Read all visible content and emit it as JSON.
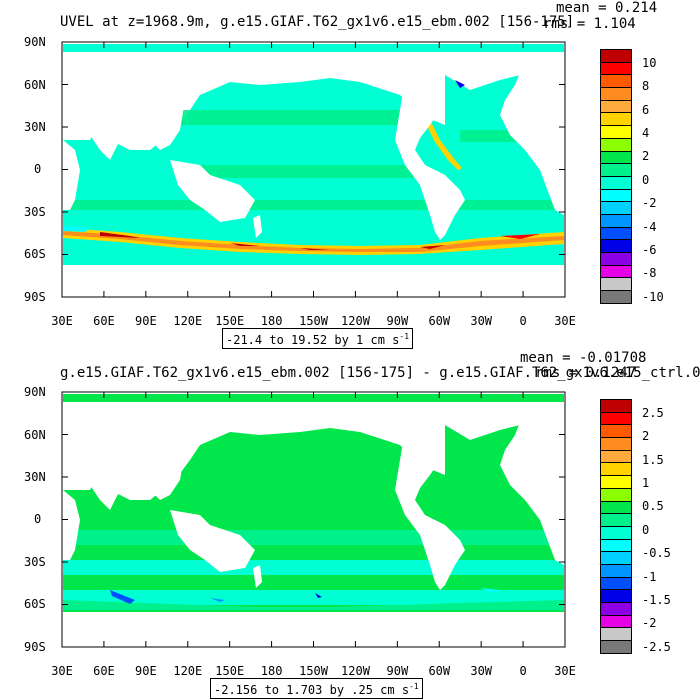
{
  "colors": {
    "red_dark": "#c00000",
    "red": "#ff0000",
    "orange_red": "#ff5a00",
    "orange": "#ff8c1e",
    "orange_light": "#ffaa3c",
    "yellow_orange": "#ffd200",
    "yellow": "#ffff00",
    "lime": "#8cff00",
    "green": "#00e64b",
    "green_light": "#00f08c",
    "aqua": "#00ffd2",
    "cyan": "#00ffff",
    "sky": "#00d2ff",
    "blue_light": "#0096ff",
    "blue": "#0050ff",
    "blue_dark": "#0000e6",
    "purple": "#8c00e6",
    "magenta": "#e600e6",
    "gray_light": "#c8c8c8",
    "gray_dark": "#787878",
    "land": "#ffffff",
    "frame": "#000000"
  },
  "panels": [
    {
      "title": "UVEL at z=1968.9m, g.e15.GIAF.T62_gx1v6.e15_ebm.002 [156-175]",
      "mean": "mean = 0.214",
      "rms": "rms = 1.104",
      "range": "-21.4 to 19.52 by 1 cm s",
      "range_sup": "-1",
      "lat_labels": [
        "90N",
        "60N",
        "30N",
        "0",
        "30S",
        "60S",
        "90S"
      ],
      "lon_labels": [
        "30E",
        "60E",
        "90E",
        "120E",
        "150E",
        "180",
        "150W",
        "120W",
        "90W",
        "60W",
        "30W",
        "0",
        "30E"
      ],
      "colorbar_labels": [
        "10",
        "8",
        "6",
        "4",
        "2",
        "0",
        "-2",
        "-4",
        "-6",
        "-8",
        "-10"
      ],
      "ocean_fill": "#00ffd2",
      "band_fill": "#00f08c"
    },
    {
      "title": "g.e15.GIAF.T62_gx1v6.e15_ebm.002 [156-175] - g.e15.GIAF.T62_gx1v6.e15_ctrl.0",
      "mean": "mean = -0.01708",
      "rms": "rms = 0.1247",
      "range": "-2.156 to 1.703 by .25 cm s",
      "range_sup": "-1",
      "lat_labels": [
        "90N",
        "60N",
        "30N",
        "0",
        "30S",
        "60S",
        "90S"
      ],
      "lon_labels": [
        "30E",
        "60E",
        "90E",
        "120E",
        "150E",
        "180",
        "150W",
        "120W",
        "90W",
        "60W",
        "30W",
        "0",
        "30E"
      ],
      "colorbar_labels": [
        "2.5",
        "2",
        "1.5",
        "1",
        "0.5",
        "0",
        "-0.5",
        "-1",
        "-1.5",
        "-2",
        "-2.5"
      ],
      "ocean_fill": "#00e64b",
      "band_fill": "#00f08c"
    }
  ],
  "colorbar_colors": [
    "#c00000",
    "#ff0000",
    "#ff5a00",
    "#ff8c1e",
    "#ffaa3c",
    "#ffd200",
    "#ffff00",
    "#8cff00",
    "#00e64b",
    "#00f08c",
    "#00ffd2",
    "#00ffff",
    "#00d2ff",
    "#0096ff",
    "#0050ff",
    "#0000e6",
    "#8c00e6",
    "#e600e6",
    "#c8c8c8",
    "#787878"
  ]
}
